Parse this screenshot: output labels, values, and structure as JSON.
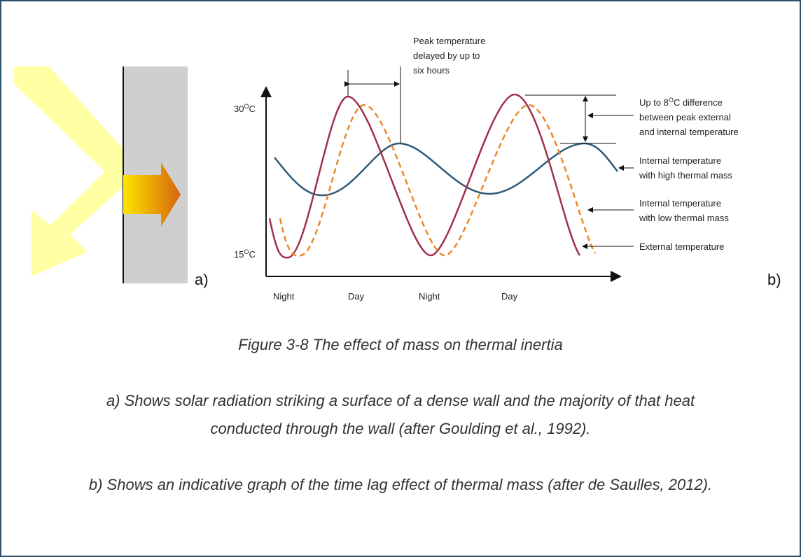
{
  "figure": {
    "panel_a_label": "a)",
    "panel_b_label": "b)",
    "graph": {
      "y_labels": [
        {
          "number": "30",
          "sup": "O",
          "unit": "C"
        },
        {
          "number": "15",
          "sup": "O",
          "unit": "C"
        }
      ],
      "x_labels": [
        "Night",
        "Day",
        "Night",
        "Day"
      ],
      "lag_note": [
        "Peak temperature",
        "delayed by up to",
        "six hours"
      ],
      "difference_note": {
        "lines": [
          "between peak external",
          "and internal temperature"
        ],
        "first": {
          "before": "Up to 8",
          "sup": "O",
          "after": "C difference"
        }
      },
      "legend": [
        [
          "Internal temperature",
          "with high thermal mass"
        ],
        [
          "Internal temperature",
          "with low thermal mass"
        ],
        [
          "External temperature"
        ]
      ]
    },
    "caption": "Figure 3-8 The effect of mass on thermal inertia",
    "notes": [
      [
        "a) Shows solar radiation striking a surface of a dense wall and the majority of that heat",
        "conducted through the wall (after Goulding et al., 1992)."
      ],
      [
        "b) Shows an indicative graph of the time lag effect of thermal mass (after de Saulles, 2012)."
      ]
    ]
  }
}
